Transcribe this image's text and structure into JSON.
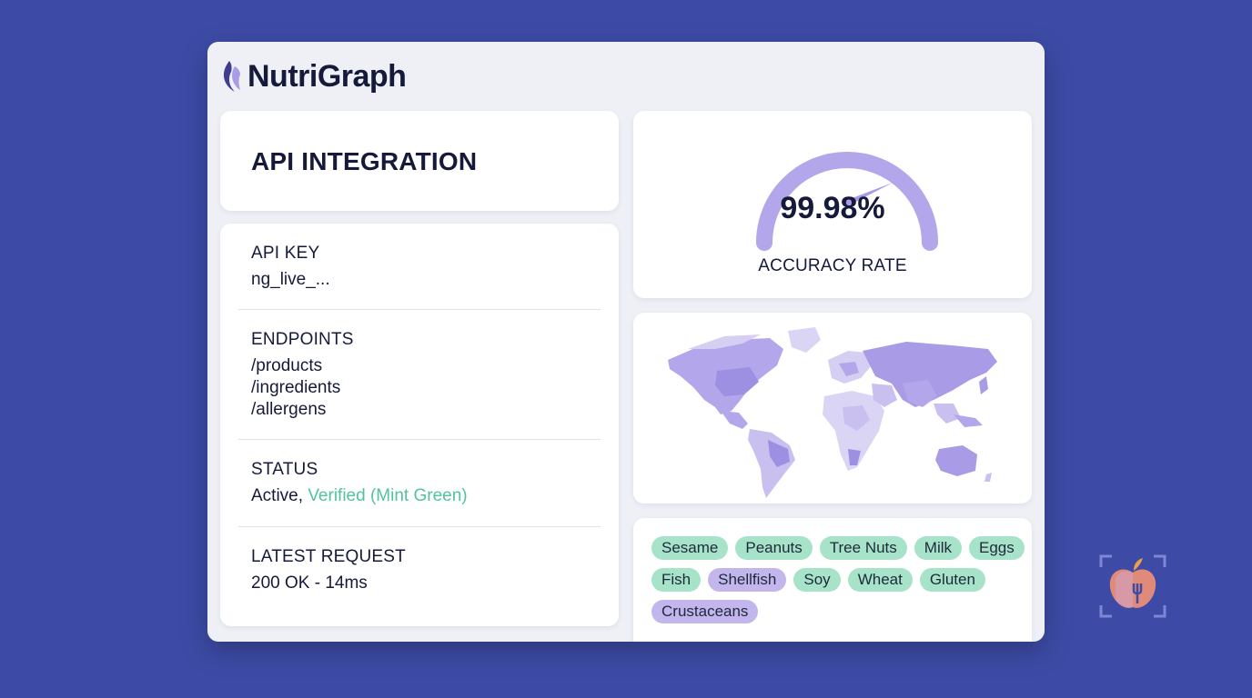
{
  "brand": {
    "name": "NutriGraph",
    "logo_icon": "flame-icon"
  },
  "title_card": {
    "title": "API INTEGRATION"
  },
  "api_key": {
    "label": "API KEY",
    "value": "ng_live_..."
  },
  "endpoints": {
    "label": "ENDPOINTS",
    "items": [
      "/products",
      "/ingredients",
      "/allergens"
    ]
  },
  "status": {
    "label": "STATUS",
    "active": "Active,",
    "verified": "Verified (Mint Green)"
  },
  "latest_request": {
    "label": "LATEST REQUEST",
    "value": "200 OK - 14ms"
  },
  "gauge": {
    "value": "99.98%",
    "label": "ACCURACY RATE",
    "fill_fraction": 0.9998
  },
  "map": {
    "icon": "world-map"
  },
  "allergens": [
    {
      "name": "Sesame",
      "color": "mint"
    },
    {
      "name": "Peanuts",
      "color": "mint"
    },
    {
      "name": "Tree Nuts",
      "color": "mint"
    },
    {
      "name": "Milk",
      "color": "mint"
    },
    {
      "name": "Eggs",
      "color": "mint"
    },
    {
      "name": "Fish",
      "color": "mint"
    },
    {
      "name": "Shellfish",
      "color": "purple"
    },
    {
      "name": "Soy",
      "color": "mint"
    },
    {
      "name": "Wheat",
      "color": "mint"
    },
    {
      "name": "Gluten",
      "color": "mint"
    },
    {
      "name": "Crustaceans",
      "color": "purple"
    }
  ],
  "corner_logo": {
    "icon": "apple-fork-scan-icon"
  },
  "colors": {
    "background": "#3d4ba6",
    "mint": "#52c49a",
    "purple": "#a99be6",
    "text": "#151a3a"
  }
}
